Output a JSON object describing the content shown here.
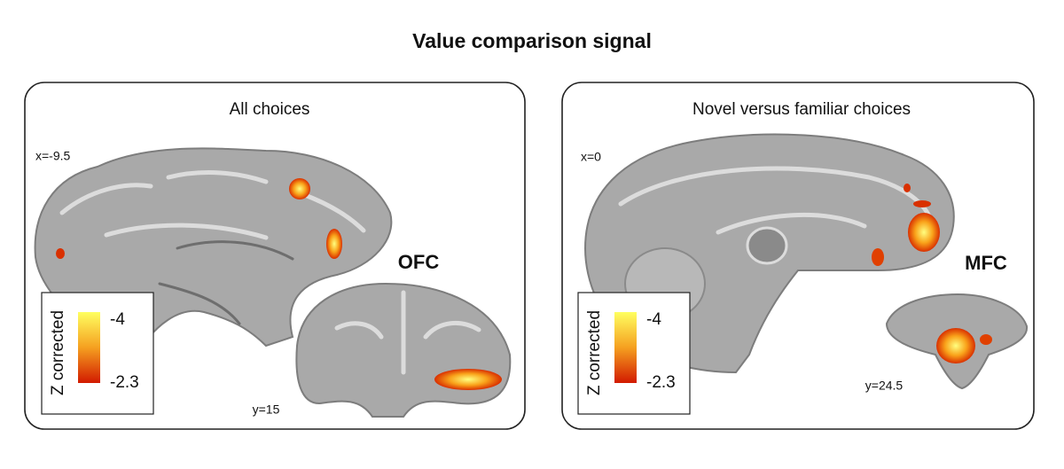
{
  "title": "Value comparison signal",
  "panels": [
    {
      "title": "All choices",
      "sagittal_label": "x=-9.5",
      "coronal_label": "y=15",
      "region": "OFC",
      "colorbar": {
        "label": "Z corrected",
        "top": "-4",
        "bottom": "-2.3"
      }
    },
    {
      "title": "Novel versus familiar choices",
      "sagittal_label": "x=0",
      "coronal_label": "y=24.5",
      "region": "MFC",
      "colorbar": {
        "label": "Z corrected",
        "top": "-4",
        "bottom": "-2.3"
      }
    }
  ]
}
